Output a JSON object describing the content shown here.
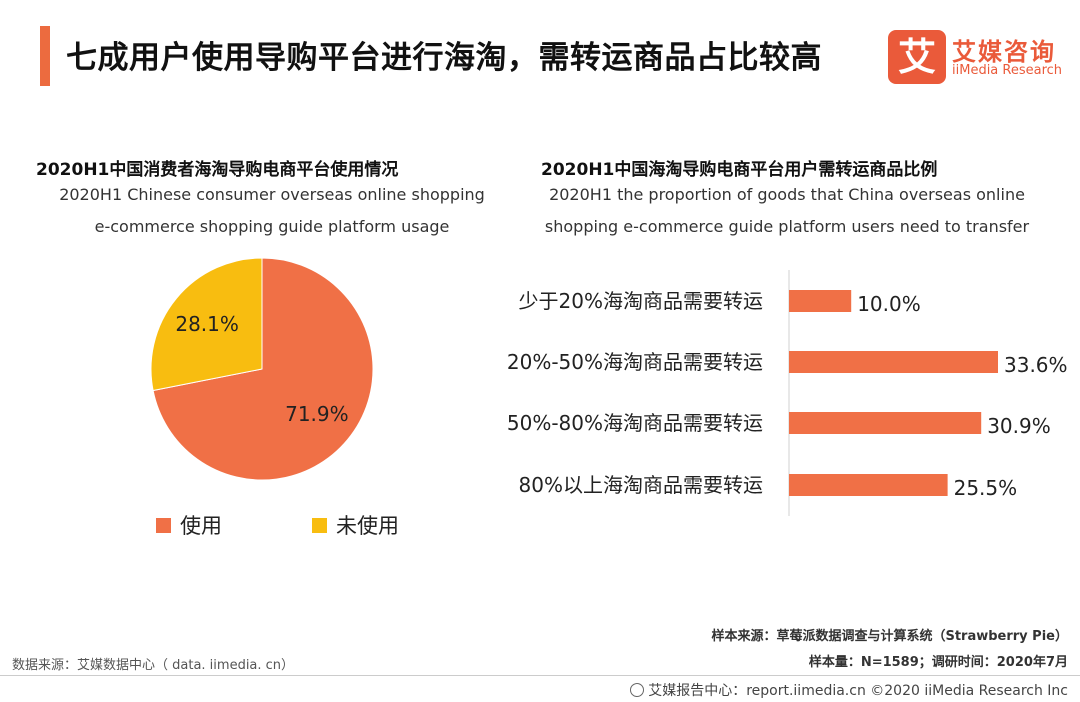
{
  "header": {
    "title": "七成用户使用导购平台进行海淘，需转运商品占比较高",
    "logo_mark": "艾",
    "logo_cn": "艾媒咨询",
    "logo_en": "iiMedia Research"
  },
  "left_panel": {
    "title": "2020H1中国消费者海淘导购电商平台使用情况",
    "subtitle_line1": "2020H1 Chinese consumer overseas online shopping",
    "subtitle_line2": "e-commerce shopping guide platform usage"
  },
  "right_panel": {
    "title": "2020H1中国海淘导购电商平台用户需转运商品比例",
    "subtitle_line1": "2020H1 the proportion of goods that China overseas online",
    "subtitle_line2": "shopping e-commerce guide platform users need to transfer"
  },
  "chart_data": [
    {
      "type": "pie",
      "categories": [
        "使用",
        "未使用"
      ],
      "values": [
        71.9,
        28.1
      ],
      "labels": [
        "71.9%",
        "28.1%"
      ],
      "colors": [
        "#f07046",
        "#f8bd10"
      ],
      "legend": "bottom"
    },
    {
      "type": "bar",
      "orientation": "horizontal",
      "categories": [
        "少于20%海淘商品需要转运",
        "20%-50%海淘商品需要转运",
        "50%-80%海淘商品需要转运",
        "80%以上海淘商品需要转运"
      ],
      "values": [
        10.0,
        33.6,
        30.9,
        25.5
      ],
      "labels": [
        "10.0%",
        "33.6%",
        "30.9%",
        "25.5%"
      ],
      "color": "#f07046",
      "xlim": [
        0,
        33.6
      ]
    }
  ],
  "footer": {
    "data_source": "数据来源：艾媒数据中心（ data. iimedia. cn）",
    "sample_source": "样本来源：草莓派数据调查与计算系统（Strawberry Pie）",
    "sample_size": "样本量：N=1589；调研时间：2020年7月",
    "copyright": "艾媒报告中心：report.iimedia.cn  ©2020  iiMedia Research  Inc"
  }
}
